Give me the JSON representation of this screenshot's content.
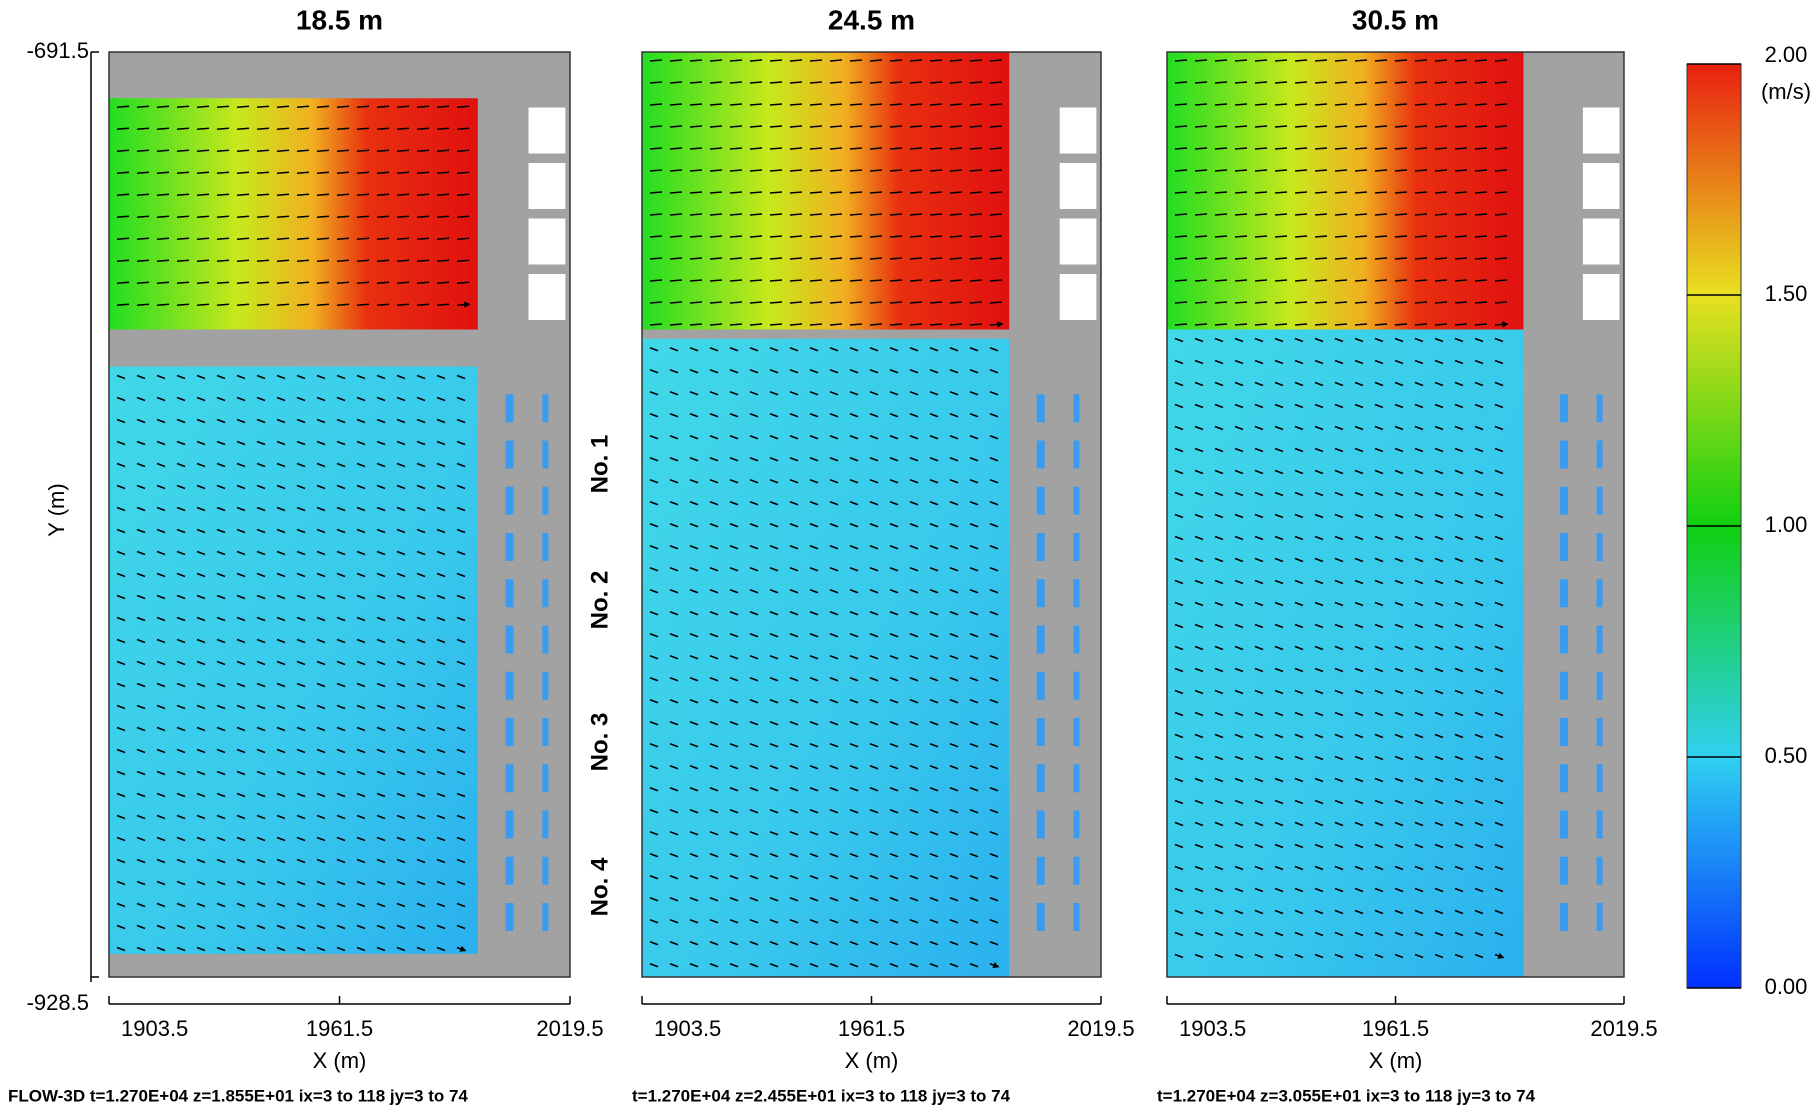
{
  "chart_data": [
    {
      "type": "vector-field",
      "title": "18.5 m",
      "xlabel": "X (m)",
      "ylabel": "Y (m)",
      "xlim": [
        1903.5,
        2019.5
      ],
      "xticks": [
        1903.5,
        1961.5,
        2019.5
      ],
      "ylim": [
        -928.5,
        -691.5
      ],
      "yticks": [
        -928.5,
        -691.5
      ],
      "footer": "FLOW-3D  t=1.270E+04  z=1.855E+01   ix=3 to 118   jy=3 to 74"
    },
    {
      "type": "vector-field",
      "title": "24.5 m",
      "xlabel": "X (m)",
      "xlim": [
        1903.5,
        2019.5
      ],
      "xticks": [
        1903.5,
        1961.5,
        2019.5
      ],
      "footer": "t=1.270E+04  z=2.455E+01   ix=3 to 118   jy=3 to 74"
    },
    {
      "type": "vector-field",
      "title": "30.5 m",
      "xlabel": "X (m)",
      "xlim": [
        1903.5,
        2019.5
      ],
      "xticks": [
        1903.5,
        1961.5,
        2019.5
      ],
      "footer": "t=1.270E+04  z=3.055E+01   ix=3 to 118   jy=3 to 74"
    }
  ],
  "colorbar": {
    "label": "(m/s)",
    "lim": [
      0,
      2
    ],
    "ticks": [
      {
        "value": 0,
        "label": "0.00"
      },
      {
        "value": 0.5,
        "label": "0.50"
      },
      {
        "value": 1,
        "label": "1.00"
      },
      {
        "value": 1.5,
        "label": "1.50"
      },
      {
        "value": 2,
        "label": "2.00"
      }
    ]
  },
  "annotations": [
    "No. 1",
    "No. 2",
    "No. 3",
    "No. 4"
  ]
}
